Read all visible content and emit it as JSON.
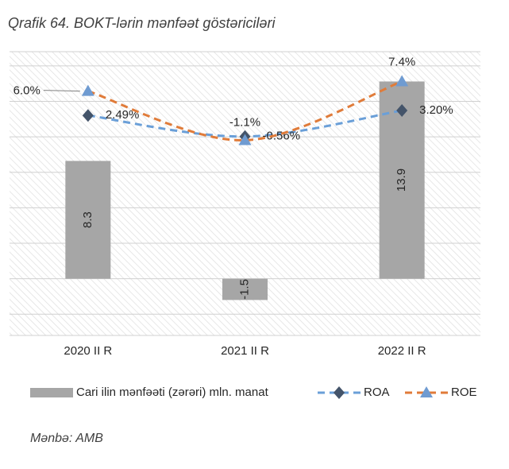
{
  "chart_data": {
    "type": "bar_line",
    "title": "Qrafik 64. BOKT-lərin mənfəət göstəriciləri",
    "source": "Mənbə: AMB",
    "categories": [
      "2020 II R",
      "2021 II R",
      "2022 II R"
    ],
    "series": [
      {
        "name": "Cari ilin mənfəəti (zərəri) mln. manat",
        "type": "bar",
        "color": "#a6a6a6",
        "values": [
          8.3,
          -1.5,
          13.9
        ]
      },
      {
        "name": "ROA",
        "type": "line",
        "axis": "y2",
        "color": "#6a9fd8",
        "marker": "diamond",
        "marker_color": "#44546a",
        "dashed": true,
        "values": [
          2.49,
          -0.56,
          3.2
        ],
        "value_labels": [
          "2.49%",
          "-0.56%",
          "3.20%"
        ]
      },
      {
        "name": "ROE",
        "type": "line",
        "axis": "y2",
        "color": "#e07b39",
        "marker": "triangle",
        "marker_color": "#6f9bd1",
        "dashed": true,
        "values": [
          6.0,
          -1.1,
          7.4
        ],
        "value_labels": [
          "6.0%",
          "-1.1%",
          "7.4%"
        ]
      }
    ],
    "ylim": [
      -4,
      16
    ],
    "yticks": [
      -2.5,
      0,
      2.5,
      5,
      7.5,
      10,
      12.5,
      15
    ],
    "y2lim": [
      -29.3,
      11.7
    ],
    "grid": true,
    "legend": "bottom"
  }
}
